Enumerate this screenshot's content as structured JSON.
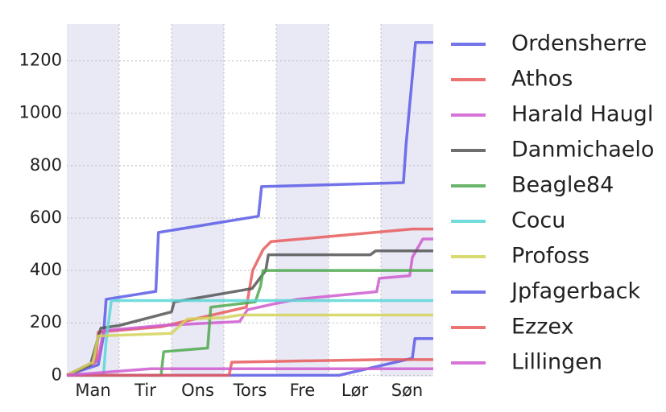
{
  "chart_data": {
    "type": "line",
    "xlim": [
      0,
      7
    ],
    "ylim": [
      -5,
      1340
    ],
    "xticks": [
      {
        "value": 0.5,
        "label": "Man"
      },
      {
        "value": 1.5,
        "label": "Tir"
      },
      {
        "value": 2.5,
        "label": "Ons"
      },
      {
        "value": 3.5,
        "label": "Tors"
      },
      {
        "value": 4.5,
        "label": "Fre"
      },
      {
        "value": 5.5,
        "label": "Lør"
      },
      {
        "value": 6.5,
        "label": "Søn"
      }
    ],
    "yticks": [
      0,
      200,
      400,
      600,
      800,
      1000,
      1200
    ],
    "grid": true,
    "legend": "right",
    "series": [
      {
        "name": "Ordensherre",
        "color": "#5b5be6",
        "x": [
          0,
          0.6,
          0.7,
          0.75,
          1.7,
          1.75,
          3.66,
          3.72,
          6.43,
          6.48,
          6.66,
          7
        ],
        "values": [
          0,
          40,
          150,
          290,
          320,
          545,
          607,
          720,
          735,
          880,
          1270,
          1270
        ]
      },
      {
        "name": "Athos",
        "color": "#e85a5a",
        "x": [
          0,
          0.55,
          0.6,
          1.8,
          3.43,
          3.55,
          3.75,
          3.9,
          6.6,
          7
        ],
        "values": [
          0,
          50,
          165,
          185,
          260,
          400,
          480,
          510,
          558,
          558
        ]
      },
      {
        "name": "Harald Haugl",
        "color": "#cf5acf",
        "x": [
          0,
          0.6,
          0.7,
          1.8,
          3.3,
          3.45,
          3.9,
          4.4,
          5.92,
          5.97,
          6.55,
          6.6,
          6.8,
          7
        ],
        "values": [
          0,
          60,
          170,
          190,
          205,
          250,
          270,
          290,
          319,
          370,
          380,
          450,
          520,
          520
        ]
      },
      {
        "name": "Danmichaelo",
        "color": "#555555",
        "x": [
          0,
          0.45,
          0.65,
          1.0,
          2.0,
          2.05,
          3.54,
          3.8,
          3.85,
          5.8,
          5.9,
          7
        ],
        "values": [
          0,
          40,
          180,
          190,
          242,
          280,
          331,
          400,
          460,
          460,
          475,
          475
        ]
      },
      {
        "name": "Beagle84",
        "color": "#4fa84f",
        "x": [
          0,
          1.8,
          1.85,
          2.69,
          2.75,
          3.6,
          3.7,
          3.75,
          7
        ],
        "values": [
          0,
          0,
          90,
          104,
          260,
          280,
          340,
          400,
          400
        ]
      },
      {
        "name": "Cocu",
        "color": "#5cd6d6",
        "x": [
          0,
          0.7,
          0.75,
          0.85,
          7
        ],
        "values": [
          0,
          0,
          130,
          285,
          285
        ]
      },
      {
        "name": "Profoss",
        "color": "#d4d45a",
        "x": [
          0,
          0.5,
          0.6,
          2.0,
          2.3,
          3.0,
          3.3,
          7
        ],
        "values": [
          0,
          50,
          150,
          160,
          215,
          220,
          230,
          230
        ]
      },
      {
        "name": "Jpfagerback",
        "color": "#5b5be6",
        "x": [
          0,
          5.2,
          6.6,
          6.65,
          7
        ],
        "values": [
          0,
          0,
          65,
          140,
          140
        ]
      },
      {
        "name": "Ezzex",
        "color": "#e85a5a",
        "x": [
          0,
          3.1,
          3.15,
          6.0,
          7
        ],
        "values": [
          0,
          0,
          50,
          60,
          60
        ]
      },
      {
        "name": "Lillingen",
        "color": "#cf5acf",
        "x": [
          0,
          1.6,
          7
        ],
        "values": [
          0,
          25,
          25
        ]
      }
    ]
  }
}
